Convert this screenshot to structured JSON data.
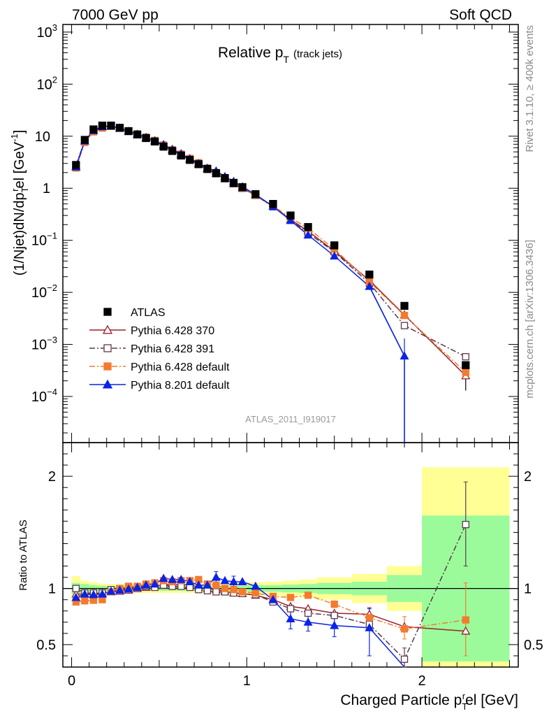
{
  "header": {
    "left": "7000 GeV pp",
    "right": "Soft QCD"
  },
  "side_labels": {
    "rivet": "Rivet 3.1.10, ≥ 400k events",
    "source": "mcplots.cern.ch [arXiv:1306.3436]"
  },
  "chart_data": [
    {
      "panel": "main",
      "type": "scatter",
      "title_main": "Relative p",
      "title_sub": "T",
      "title_extra": "(track jets)",
      "analysis_tag": "ATLAS_2011_I919017",
      "ylabel": "(1/Njet)dN/dp",
      "ylabel_sub": "T",
      "ylabel_sup": "r",
      "ylabel_tail": "el [GeV",
      "ylabel_unit_sup": "-1",
      "ylabel_close": "]",
      "yscale": "log",
      "ylim": [
        1.3e-05,
        1400
      ],
      "xlim": [
        -0.05,
        2.55
      ],
      "y_tick_labels": [
        {
          "base": "10",
          "exp": "3",
          "value": 1000
        },
        {
          "base": "10",
          "exp": "2",
          "value": 100
        },
        {
          "base": "10",
          "exp": "",
          "value": 10
        },
        {
          "base": "1",
          "exp": "",
          "value": 1
        },
        {
          "base": "10",
          "exp": "−1",
          "value": 0.1
        },
        {
          "base": "10",
          "exp": "−2",
          "value": 0.01
        },
        {
          "base": "10",
          "exp": "−3",
          "value": 0.001
        },
        {
          "base": "10",
          "exp": "−4",
          "value": 0.0001
        }
      ],
      "legend_placement": "bottom-left",
      "x": [
        0.025,
        0.075,
        0.125,
        0.175,
        0.225,
        0.275,
        0.325,
        0.375,
        0.425,
        0.475,
        0.525,
        0.575,
        0.625,
        0.675,
        0.725,
        0.775,
        0.825,
        0.875,
        0.925,
        0.975,
        1.05,
        1.15,
        1.25,
        1.35,
        1.5,
        1.7,
        1.9,
        2.25
      ],
      "series": [
        {
          "name": "ATLAS",
          "color": "#000000",
          "marker": "square-filled",
          "line": "none",
          "values": [
            2.8,
            8.5,
            13.5,
            16,
            16,
            14.5,
            12.5,
            10.8,
            9.2,
            7.9,
            6.3,
            5.2,
            4.25,
            3.5,
            2.9,
            2.35,
            1.95,
            1.57,
            1.27,
            1.05,
            0.77,
            0.5,
            0.3,
            0.18,
            0.08,
            0.022,
            0.0055,
            0.0004
          ]
        },
        {
          "name": "Pythia 6.428 370",
          "color": "#9c1f2b",
          "marker": "triangle-open",
          "line": "solid",
          "values": [
            2.65,
            8.1,
            12.9,
            15.3,
            15.5,
            14.1,
            12.3,
            10.8,
            9.3,
            8.1,
            6.5,
            5.4,
            4.38,
            3.62,
            2.93,
            2.36,
            1.93,
            1.53,
            1.22,
            1.0,
            0.73,
            0.45,
            0.25,
            0.15,
            0.062,
            0.017,
            0.0037,
            0.00025
          ]
        },
        {
          "name": "Pythia 6.428 391",
          "color": "#5c3a48",
          "marker": "square-open",
          "line": "dashdot",
          "values": [
            2.8,
            8.2,
            13.0,
            15.4,
            15.8,
            14.4,
            12.6,
            10.9,
            9.4,
            8.0,
            6.5,
            5.3,
            4.35,
            3.55,
            2.88,
            2.3,
            1.9,
            1.52,
            1.22,
            1.0,
            0.73,
            0.44,
            0.245,
            0.138,
            0.06,
            0.015,
            0.0023,
            0.00058
          ]
        },
        {
          "name": "Pythia 6.428 default",
          "color": "#f47a2e",
          "marker": "square-filled",
          "line": "dashdot",
          "values": [
            2.45,
            7.6,
            12.1,
            14.3,
            15.5,
            14.5,
            12.7,
            11.0,
            9.6,
            8.3,
            6.8,
            5.5,
            4.55,
            3.75,
            3.1,
            2.45,
            2.0,
            1.57,
            1.25,
            1.02,
            0.74,
            0.46,
            0.27,
            0.17,
            0.068,
            0.016,
            0.0036,
            0.00029
          ]
        },
        {
          "name": "Pythia 8.201 default",
          "color": "#0a23e6",
          "marker": "triangle-filled",
          "line": "solid",
          "values": [
            2.55,
            8.1,
            12.8,
            15.2,
            15.6,
            14.3,
            12.4,
            10.9,
            9.5,
            8.2,
            6.9,
            5.6,
            4.6,
            3.7,
            2.98,
            2.43,
            2.15,
            1.68,
            1.35,
            1.07,
            0.76,
            0.45,
            0.24,
            0.126,
            0.05,
            0.013,
            0.0006,
            null
          ]
        }
      ]
    },
    {
      "panel": "ratio",
      "type": "line",
      "ylabel": "Ratio to ATLAS",
      "xlabel": "Charged Particle p",
      "xlabel_sub": "T",
      "xlabel_sup": "r",
      "xlabel_tail": "el [GeV]",
      "ylim": [
        0.3,
        2.3
      ],
      "xlim": [
        -0.05,
        2.55
      ],
      "x_tick_labels": [
        "0",
        "1",
        "2"
      ],
      "x_tick_values": [
        0,
        1,
        2
      ],
      "y_tick_labels": [
        "0.5",
        "1",
        "2"
      ],
      "y_tick_values": [
        0.5,
        1,
        2
      ],
      "band_colors": {
        "inner": "#9bfb9b",
        "outer": "#ffff96"
      },
      "bands": {
        "edges": [
          0.0,
          0.05,
          0.1,
          0.15,
          0.2,
          0.25,
          0.3,
          0.35,
          0.4,
          0.45,
          0.5,
          0.55,
          0.6,
          0.65,
          0.7,
          0.75,
          0.8,
          0.85,
          0.9,
          0.95,
          1.0,
          1.1,
          1.2,
          1.3,
          1.4,
          1.6,
          1.8,
          2.0,
          2.5
        ],
        "inner": [
          0.05,
          0.04,
          0.03,
          0.025,
          0.02,
          0.02,
          0.02,
          0.02,
          0.02,
          0.02,
          0.02,
          0.02,
          0.02,
          0.02,
          0.02,
          0.02,
          0.02,
          0.02,
          0.02,
          0.025,
          0.03,
          0.03,
          0.035,
          0.04,
          0.05,
          0.06,
          0.12,
          0.65
        ],
        "outer": [
          0.11,
          0.07,
          0.055,
          0.045,
          0.04,
          0.04,
          0.04,
          0.04,
          0.04,
          0.04,
          0.04,
          0.04,
          0.04,
          0.04,
          0.04,
          0.04,
          0.04,
          0.04,
          0.04,
          0.05,
          0.055,
          0.06,
          0.07,
          0.08,
          0.1,
          0.13,
          0.2,
          1.08
        ]
      },
      "series": [
        {
          "name": "Pythia 6.428 370",
          "values": [
            0.95,
            0.95,
            0.955,
            0.957,
            0.97,
            0.975,
            0.985,
            1.0,
            1.01,
            1.025,
            1.03,
            1.04,
            1.03,
            1.035,
            1.01,
            1.0,
            0.99,
            0.975,
            0.96,
            0.955,
            0.94,
            0.9,
            0.84,
            0.82,
            0.78,
            0.77,
            0.66,
            0.62
          ]
        },
        {
          "name": "Pythia 6.428 391",
          "values": [
            1.0,
            0.96,
            0.96,
            0.96,
            0.99,
            1.0,
            1.01,
            1.01,
            1.02,
            1.01,
            1.03,
            1.02,
            1.02,
            1.01,
            0.99,
            0.98,
            0.97,
            0.97,
            0.96,
            0.955,
            0.945,
            0.88,
            0.82,
            0.78,
            0.76,
            0.68,
            0.37,
            1.57
          ]
        },
        {
          "name": "Pythia 6.428 default",
          "values": [
            0.88,
            0.89,
            0.895,
            0.9,
            0.97,
            1.0,
            1.02,
            1.02,
            1.04,
            1.05,
            1.07,
            1.06,
            1.07,
            1.07,
            1.08,
            1.04,
            1.03,
            1.0,
            0.99,
            0.97,
            0.96,
            0.93,
            0.92,
            0.94,
            0.86,
            0.74,
            0.64,
            0.72
          ]
        },
        {
          "name": "Pythia 8.201 default",
          "values": [
            0.92,
            0.95,
            0.945,
            0.95,
            0.975,
            0.985,
            0.995,
            1.01,
            1.03,
            1.04,
            1.09,
            1.08,
            1.08,
            1.06,
            1.03,
            1.03,
            1.1,
            1.07,
            1.06,
            1.06,
            1.02,
            0.9,
            0.73,
            0.7,
            0.67,
            0.65,
            0.0,
            null
          ]
        }
      ],
      "error_bars": [
        {
          "series": 0,
          "index": 25,
          "lo": 0.71,
          "hi": 0.83
        },
        {
          "series": 1,
          "index": 26,
          "lo": 0.3,
          "hi": 0.47
        },
        {
          "series": 1,
          "index": 27,
          "lo": 1.2,
          "hi": 1.95
        },
        {
          "series": 2,
          "index": 24,
          "lo": 0.83,
          "hi": 0.89
        },
        {
          "series": 2,
          "index": 25,
          "lo": 0.7,
          "hi": 0.78
        },
        {
          "series": 2,
          "index": 26,
          "lo": 0.55,
          "hi": 0.75
        },
        {
          "series": 2,
          "index": 27,
          "lo": 0.4,
          "hi": 1.05
        },
        {
          "series": 3,
          "index": 16,
          "lo": 1.05,
          "hi": 1.15
        },
        {
          "series": 3,
          "index": 18,
          "lo": 1.02,
          "hi": 1.11
        },
        {
          "series": 3,
          "index": 22,
          "lo": 0.64,
          "hi": 0.83
        },
        {
          "series": 3,
          "index": 23,
          "lo": 0.62,
          "hi": 0.79
        },
        {
          "series": 3,
          "index": 24,
          "lo": 0.57,
          "hi": 0.78
        },
        {
          "series": 3,
          "index": 25,
          "lo": 0.4,
          "hi": 0.82
        }
      ]
    }
  ]
}
